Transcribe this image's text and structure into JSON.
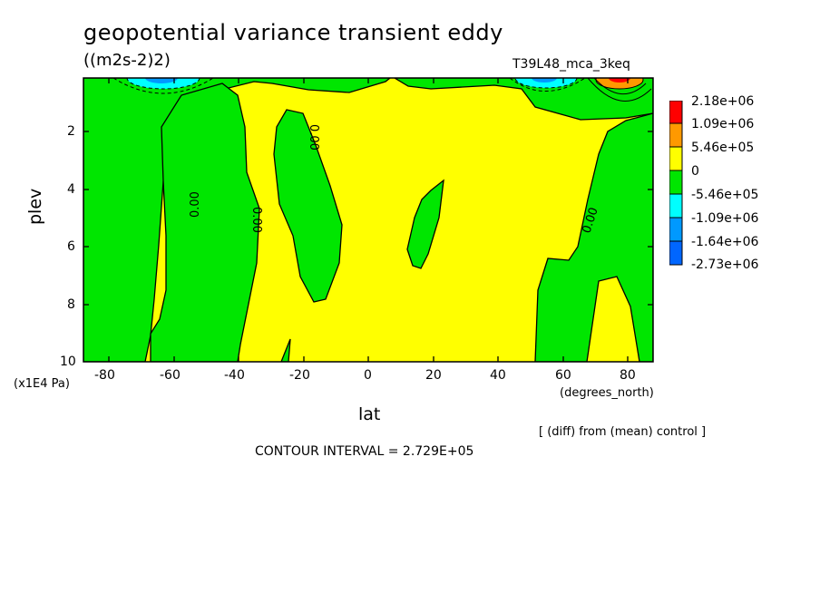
{
  "chart_data": {
    "type": "contour",
    "title": "geopotential variance transient eddy",
    "units": "((m2s-2)2)",
    "run_label": "T39L48_mca_3keq",
    "xlabel": "lat",
    "xunits": "(degrees_north)",
    "ylabel": "plev",
    "yunits": "(x1E4 Pa)",
    "x_ticks": [
      "-80",
      "-60",
      "-40",
      "-20",
      "0",
      "20",
      "40",
      "60",
      "80"
    ],
    "y_ticks": [
      "2",
      "4",
      "6",
      "8",
      "10"
    ],
    "xlim": [
      -88,
      88
    ],
    "ylim": [
      10,
      0.2
    ],
    "contour_label": "0.00",
    "contour_interval": "CONTOUR INTERVAL = 2.729E+05",
    "diff_note": "[ (diff) from (mean) control ]",
    "legend": [
      {
        "label": "2.18e+06",
        "color": "#ff0000"
      },
      {
        "label": "1.09e+06",
        "color": "#ff9900"
      },
      {
        "label": "5.46e+05",
        "color": "#ffff00"
      },
      {
        "label": "0",
        "color": "#00e600"
      },
      {
        "label": "-5.46e+05",
        "color": "#00ffff"
      },
      {
        "label": "-1.09e+06",
        "color": "#0099ff"
      },
      {
        "label": "-1.64e+06",
        "color": "#0066ff"
      },
      {
        "label": "-2.73e+06",
        "color": ""
      }
    ],
    "colors": {
      "positive_fill": "#ffff00",
      "negative_fill": "#00e600",
      "strong_positive": "#ff9900",
      "strongest_positive": "#ff0000",
      "negative_cyan": "#00ffff",
      "negative_blue": "#0099ff"
    }
  }
}
